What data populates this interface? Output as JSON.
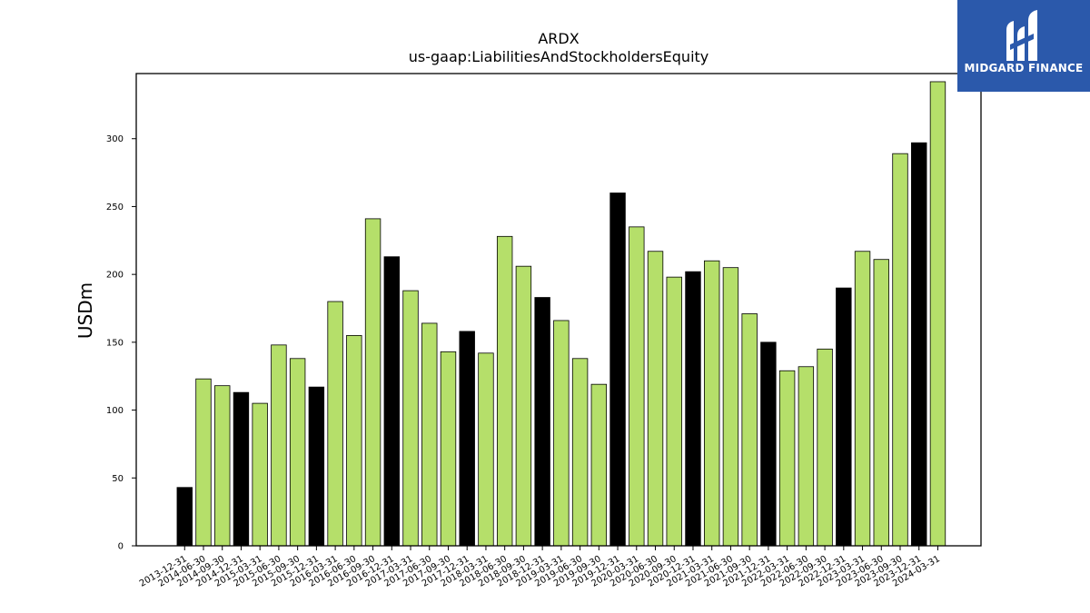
{
  "brand": {
    "name": "MIDGARD FINANCE",
    "bg_color": "#2b59ab"
  },
  "colors": {
    "bar_default": "#b5df6a",
    "bar_highlight": "#000000"
  },
  "chart_data": {
    "type": "bar",
    "title": "ARDX",
    "subtitle": "us-gaap:LiabilitiesAndStockholdersEquity",
    "xlabel": "",
    "ylabel": "USDm",
    "ylim": [
      0,
      348
    ],
    "yticks": [
      0,
      50,
      100,
      150,
      200,
      250,
      300
    ],
    "grid": false,
    "categories": [
      "2013-12-31",
      "2014-06-30",
      "2014-09-30",
      "2014-12-31",
      "2015-03-31",
      "2015-06-30",
      "2015-09-30",
      "2015-12-31",
      "2016-03-31",
      "2016-06-30",
      "2016-09-30",
      "2016-12-31",
      "2017-03-31",
      "2017-06-30",
      "2017-09-30",
      "2017-12-31",
      "2018-03-31",
      "2018-06-30",
      "2018-09-30",
      "2018-12-31",
      "2019-03-31",
      "2019-06-30",
      "2019-09-30",
      "2019-12-31",
      "2020-03-31",
      "2020-06-30",
      "2020-09-30",
      "2020-12-31",
      "2021-03-31",
      "2021-06-30",
      "2021-09-30",
      "2021-12-31",
      "2022-03-31",
      "2022-06-30",
      "2022-09-30",
      "2022-12-31",
      "2023-03-31",
      "2023-06-30",
      "2023-09-30",
      "2023-12-31",
      "2024-03-31"
    ],
    "values": [
      43,
      123,
      118,
      113,
      105,
      148,
      138,
      117,
      180,
      155,
      241,
      213,
      188,
      164,
      143,
      158,
      142,
      228,
      206,
      183,
      166,
      138,
      119,
      260,
      235,
      217,
      198,
      202,
      210,
      205,
      171,
      150,
      129,
      132,
      145,
      190,
      217,
      211,
      289,
      297,
      342
    ],
    "highlight": [
      true,
      false,
      false,
      true,
      false,
      false,
      false,
      true,
      false,
      false,
      false,
      true,
      false,
      false,
      false,
      true,
      false,
      false,
      false,
      true,
      false,
      false,
      false,
      true,
      false,
      false,
      false,
      true,
      false,
      false,
      false,
      true,
      false,
      false,
      false,
      true,
      false,
      false,
      false,
      true,
      false
    ]
  }
}
